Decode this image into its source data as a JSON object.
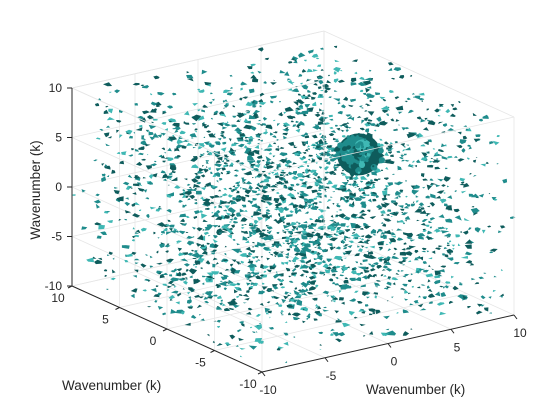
{
  "chart_data": {
    "type": "scatter",
    "subtype": "3d-isosurface-noise",
    "xlabel": "Wavenumber (k)",
    "ylabel": "Wavenumber (k)",
    "zlabel": "Wavenumber (k)",
    "xlim": [
      -10,
      10
    ],
    "ylim": [
      -10,
      10
    ],
    "zlim": [
      -10,
      10
    ],
    "xticks": [
      -10,
      -5,
      0,
      5,
      10
    ],
    "yticks": [
      -10,
      -5,
      0,
      5,
      10
    ],
    "zticks": [
      -10,
      -5,
      0,
      5,
      10
    ],
    "x_tick_labels": [
      "-10",
      "-5",
      "0",
      "5",
      "10"
    ],
    "y_tick_labels": [
      "-10",
      "-5",
      "0",
      "5",
      "10"
    ],
    "z_tick_labels": [
      "-10",
      "-5",
      "0",
      "5",
      "10"
    ],
    "grid": true,
    "box": true,
    "view": "3d-default",
    "surface_color": "#1f8c8c",
    "surface_dark_color": "#0e5c5c",
    "surface_light_color": "#3fb8b4",
    "noise_fill": "uniform scatter of small isosurface fragments throughout the cube",
    "cluster": {
      "center": [
        9,
        5,
        0
      ],
      "radius": 1.5,
      "description": "dense blob of isosurface"
    }
  }
}
